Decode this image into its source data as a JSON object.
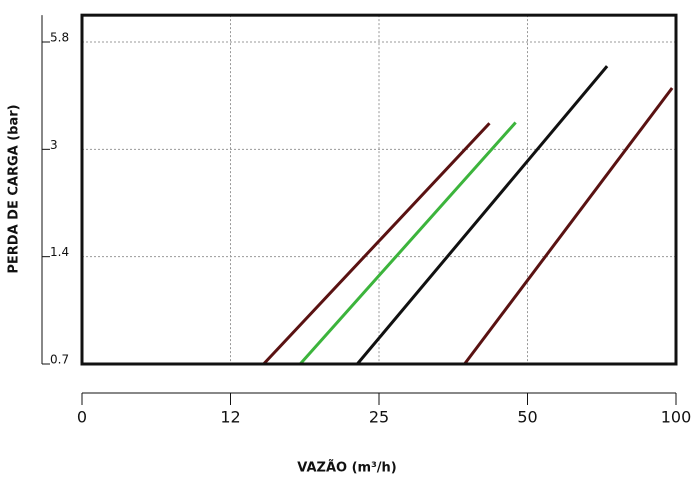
{
  "chart_data": {
    "type": "line",
    "xlabel": "VAZÃO (m³/h)",
    "ylabel": "PERDA DE CARGA (bar)",
    "xlim": [
      0,
      100
    ],
    "xticks": [
      0,
      12,
      25,
      50,
      100
    ],
    "ylim": [
      0.7,
      6.5
    ],
    "yticks": [
      0.7,
      1.4,
      3.0,
      5.8
    ],
    "grid": true,
    "series": [
      {
        "color": "#5a1212",
        "x": [
          14.9,
          43.6
        ],
        "values": [
          0.7,
          3.68
        ]
      },
      {
        "color": "#3cb43c",
        "x": [
          18.1,
          48.0
        ],
        "values": [
          0.7,
          3.7
        ]
      },
      {
        "color": "#111111",
        "x": [
          23.1,
          76.8
        ],
        "values": [
          0.7,
          5.17
        ]
      },
      {
        "color": "#5a1212",
        "x": [
          39.4,
          98.7
        ],
        "values": [
          0.7,
          4.6
        ]
      }
    ]
  }
}
